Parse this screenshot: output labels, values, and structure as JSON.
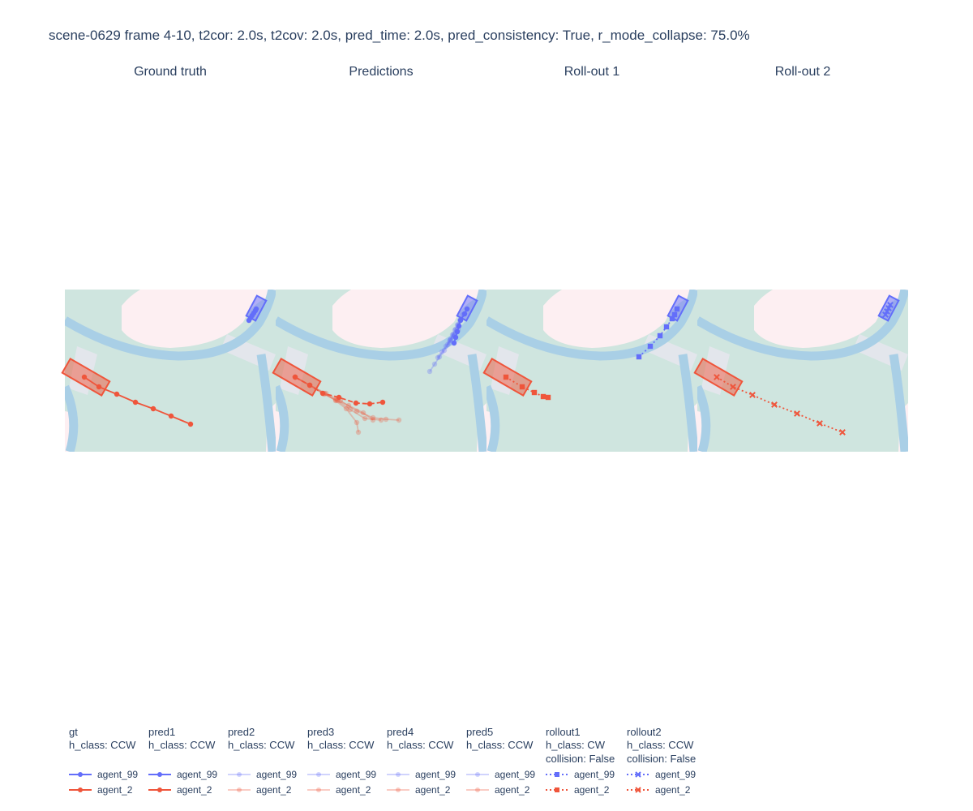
{
  "title": "scene-0629 frame 4-10, t2cor: 2.0s, t2cov: 2.0s, pred_time: 2.0s, pred_consistency: True, r_mode_collapse: 75.0%",
  "colors": {
    "drivable": "#cfe5df",
    "lane": "#a9cfe6",
    "crosswalk": "#e3e6ec",
    "walkway": "#fdeff2",
    "agent_99": "#636efa",
    "agent_2": "#ef553b"
  },
  "chart_data": {
    "type": "scatter",
    "units": "map pixels",
    "panels": [
      {
        "id": "gt",
        "title": "Ground truth",
        "boxes": [
          {
            "agent": "agent_99",
            "cx": 236,
            "cy": 23,
            "angle": -62
          },
          {
            "agent": "agent_2",
            "cx": 26,
            "cy": 108,
            "angle": 30
          }
        ],
        "traces": [
          {
            "trace": "gt",
            "agent": "agent_99",
            "marker": "circle",
            "dash": "solid",
            "opacity": 1,
            "x": [
              227,
              229,
              231,
              233,
              235,
              236
            ],
            "y": [
              38,
              35,
              32,
              29,
              26,
              24
            ]
          },
          {
            "trace": "gt",
            "agent": "agent_2",
            "marker": "circle",
            "dash": "solid",
            "opacity": 1,
            "x": [
              24,
              42,
              64,
              87,
              109,
              131,
              155
            ],
            "y": [
              108,
              120,
              129,
              139,
              147,
              156,
              166
            ]
          }
        ]
      },
      {
        "id": "pred",
        "title": "Predictions",
        "boxes": [
          {
            "agent": "agent_99",
            "cx": 236,
            "cy": 23,
            "angle": -62
          },
          {
            "agent": "agent_2",
            "cx": 26,
            "cy": 108,
            "angle": 30
          }
        ],
        "traces": [
          {
            "trace": "pred1",
            "agent": "agent_99",
            "marker": "circle",
            "dash": "solid",
            "opacity": 1,
            "x": [
              220,
              222,
              224,
              226,
              228,
              233,
              236
            ],
            "y": [
              66,
              59,
              52,
              45,
              38,
              30,
              24
            ]
          },
          {
            "trace": "pred1",
            "agent": "agent_2",
            "marker": "circle",
            "dash": "dash",
            "opacity": 1,
            "x": [
              24,
              42,
              58,
              78,
              99,
              116,
              132
            ],
            "y": [
              108,
              118,
              128,
              133,
              140,
              141,
              139
            ]
          },
          {
            "trace": "pred2",
            "agent": "agent_99",
            "marker": "circle",
            "dash": "solid",
            "opacity": 0.3,
            "x": [
              190,
              196,
              202,
              208,
              214,
              220
            ],
            "y": [
              101,
              92,
              83,
              75,
              66,
              58
            ]
          },
          {
            "trace": "pred2",
            "agent": "agent_2",
            "marker": "circle",
            "dash": "solid",
            "opacity": 0.3,
            "x": [
              24,
              42,
              60,
              74,
              87,
              100,
              102
            ],
            "y": [
              108,
              118,
              128,
              137,
              147,
              164,
              176
            ]
          },
          {
            "trace": "pred3",
            "agent": "agent_99",
            "marker": "circle",
            "dash": "solid",
            "opacity": 0.3,
            "x": [
              200,
              205,
              210,
              215,
              220,
              225
            ],
            "y": [
              84,
              77,
              70,
              63,
              56,
              50
            ]
          },
          {
            "trace": "pred3",
            "agent": "agent_2",
            "marker": "circle",
            "dash": "solid",
            "opacity": 0.3,
            "x": [
              24,
              42,
              58,
              74,
              90,
              108,
              120
            ],
            "y": [
              108,
              118,
              128,
              136,
              143,
              152,
              161
            ]
          },
          {
            "trace": "pred4",
            "agent": "agent_99",
            "marker": "circle",
            "dash": "solid",
            "opacity": 0.3,
            "x": [
              212,
              215,
              218,
              221,
              224,
              227
            ],
            "y": [
              68,
              62,
              56,
              50,
              44,
              38
            ]
          },
          {
            "trace": "pred4",
            "agent": "agent_2",
            "marker": "circle",
            "dash": "solid",
            "opacity": 0.3,
            "x": [
              24,
              42,
              60,
              76,
              92,
              110,
              130
            ],
            "y": [
              108,
              118,
              129,
              137,
              148,
              159,
              161
            ]
          },
          {
            "trace": "pred5",
            "agent": "agent_99",
            "marker": "circle",
            "dash": "solid",
            "opacity": 0.3,
            "x": [
              216,
              219,
              222,
              225,
              228,
              231
            ],
            "y": [
              61,
              55,
              49,
              43,
              37,
              31
            ]
          },
          {
            "trace": "pred5",
            "agent": "agent_2",
            "marker": "circle",
            "dash": "solid",
            "opacity": 0.3,
            "x": [
              24,
              42,
              62,
              80,
              100,
              120,
              136,
              152
            ],
            "y": [
              108,
              118,
              128,
              137,
              150,
              158,
              160,
              161
            ]
          }
        ]
      },
      {
        "id": "r1",
        "title": "Roll-out 1",
        "boxes": [
          {
            "agent": "agent_99",
            "cx": 236,
            "cy": 23,
            "angle": -62
          },
          {
            "agent": "agent_2",
            "cx": 26,
            "cy": 108,
            "angle": 30
          }
        ],
        "traces": [
          {
            "trace": "rollout1",
            "agent": "agent_99",
            "marker": "square",
            "dash": "dot",
            "opacity": 1,
            "x": [
              188,
              202,
              214,
              222,
              229,
              232,
              235
            ],
            "y": [
              83,
              70,
              57,
              46,
              36,
              31,
              24
            ]
          },
          {
            "trace": "rollout1",
            "agent": "agent_2",
            "marker": "square",
            "dash": "dot",
            "opacity": 1,
            "x": [
              24,
              44,
              59,
              70,
              76
            ],
            "y": [
              108,
              120,
              127,
              132,
              133
            ]
          }
        ]
      },
      {
        "id": "r2",
        "title": "Roll-out 2",
        "boxes": [
          {
            "agent": "agent_99",
            "cx": 236,
            "cy": 23,
            "angle": -62
          },
          {
            "agent": "agent_2",
            "cx": 26,
            "cy": 108,
            "angle": 30
          }
        ],
        "traces": [
          {
            "trace": "rollout2",
            "agent": "agent_99",
            "marker": "x",
            "dash": "dot",
            "opacity": 1,
            "x": [
              232,
              234,
              236,
              238
            ],
            "y": [
              31,
              27,
              23,
              19
            ]
          },
          {
            "trace": "rollout2",
            "agent": "agent_2",
            "marker": "x",
            "dash": "dot",
            "opacity": 1,
            "x": [
              24,
              44,
              68,
              95,
              123,
              151,
              179
            ],
            "y": [
              108,
              120,
              130,
              142,
              153,
              165,
              176
            ]
          }
        ]
      }
    ],
    "legend": [
      {
        "group": "gt",
        "info": [
          "h_class: CCW"
        ],
        "marker": "circle",
        "dash": "solid",
        "opacity": 1,
        "agents": [
          "agent_99",
          "agent_2"
        ]
      },
      {
        "group": "pred1",
        "info": [
          "h_class: CCW"
        ],
        "marker": "circle",
        "dash": "solid",
        "opacity": 1,
        "agents": [
          "agent_99",
          "agent_2"
        ]
      },
      {
        "group": "pred2",
        "info": [
          "h_class: CCW"
        ],
        "marker": "circle",
        "dash": "solid",
        "opacity": 0.3,
        "agents": [
          "agent_99",
          "agent_2"
        ]
      },
      {
        "group": "pred3",
        "info": [
          "h_class: CCW"
        ],
        "marker": "circle",
        "dash": "solid",
        "opacity": 0.3,
        "agents": [
          "agent_99",
          "agent_2"
        ]
      },
      {
        "group": "pred4",
        "info": [
          "h_class: CCW"
        ],
        "marker": "circle",
        "dash": "solid",
        "opacity": 0.3,
        "agents": [
          "agent_99",
          "agent_2"
        ]
      },
      {
        "group": "pred5",
        "info": [
          "h_class: CCW"
        ],
        "marker": "circle",
        "dash": "solid",
        "opacity": 0.3,
        "agents": [
          "agent_99",
          "agent_2"
        ]
      },
      {
        "group": "rollout1",
        "info": [
          "h_class: CW",
          "collision: False"
        ],
        "marker": "square",
        "dash": "dot",
        "opacity": 1,
        "agents": [
          "agent_99",
          "agent_2"
        ]
      },
      {
        "group": "rollout2",
        "info": [
          "h_class: CCW",
          "collision: False"
        ],
        "marker": "x",
        "dash": "dot",
        "opacity": 1,
        "agents": [
          "agent_99",
          "agent_2"
        ]
      }
    ]
  }
}
